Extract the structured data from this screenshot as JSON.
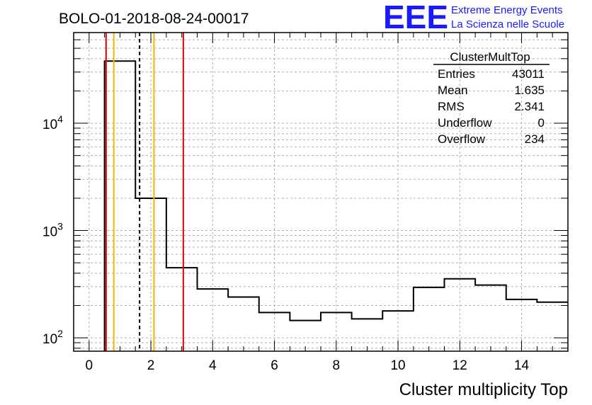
{
  "chart_data": {
    "type": "histogram",
    "title": "BOLO-01-2018-08-24-00017",
    "xlabel": "Cluster multiplicity Top",
    "ylabel": "",
    "xlim": [
      -0.5,
      15.5
    ],
    "ylim": [
      75,
      70000
    ],
    "yscale": "log",
    "grid": true,
    "x_ticks": [
      0,
      2,
      4,
      6,
      8,
      10,
      12,
      14
    ],
    "y_ticks": [
      {
        "value": 100,
        "base": "10",
        "exp": "2"
      },
      {
        "value": 1000,
        "base": "10",
        "exp": "3"
      },
      {
        "value": 10000,
        "base": "10",
        "exp": "4"
      }
    ],
    "bin_edges": [
      0.5,
      1.5,
      2.5,
      3.5,
      4.5,
      5.5,
      6.5,
      7.5,
      8.5,
      9.5,
      10.5,
      11.5,
      12.5,
      13.5,
      14.5,
      15.5
    ],
    "bin_values": [
      38000,
      2000,
      450,
      285,
      240,
      172,
      145,
      172,
      150,
      178,
      295,
      355,
      310,
      228,
      215
    ],
    "markers": [
      {
        "x": 0.55,
        "color": "#e00000",
        "style": "solid"
      },
      {
        "x": 0.8,
        "color": "#f5b400",
        "style": "solid"
      },
      {
        "x": 1.635,
        "color": "#000000",
        "style": "dashed"
      },
      {
        "x": 2.1,
        "color": "#f5b400",
        "style": "solid"
      },
      {
        "x": 3.05,
        "color": "#e00000",
        "style": "solid"
      }
    ],
    "stats_box": {
      "name": "ClusterMultTop",
      "rows": [
        {
          "label": "Entries",
          "value": "43011"
        },
        {
          "label": "Mean",
          "value": "1.635"
        },
        {
          "label": "RMS",
          "value": "2.341"
        },
        {
          "label": "Underflow",
          "value": "0"
        },
        {
          "label": "Overflow",
          "value": "234"
        }
      ]
    }
  },
  "logo": {
    "text": "EEE",
    "line1": "Extreme Energy Events",
    "line2": "La Scienza nelle Scuole",
    "color": "#1a1aff"
  }
}
